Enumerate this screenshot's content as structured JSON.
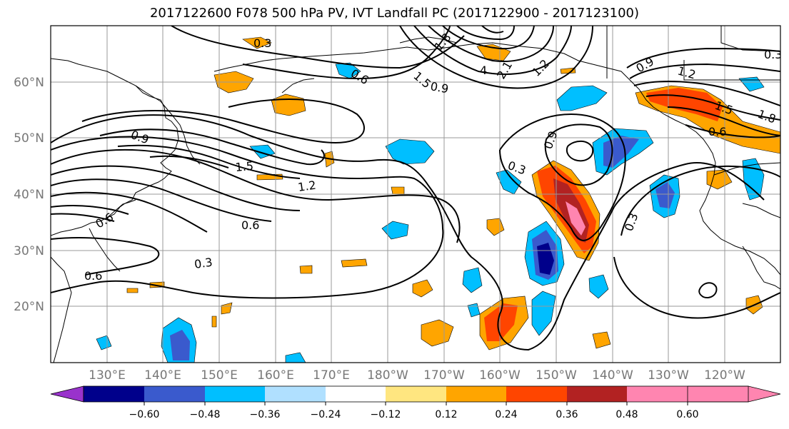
{
  "title": "2017122600 F078 500 hPa PV, IVT Landfall PC (2017122900 - 2017123100)",
  "lat_labels": [
    "60°N",
    "50°N",
    "40°N",
    "30°N",
    "20°N"
  ],
  "lon_labels": [
    "130°E",
    "140°E",
    "150°E",
    "160°E",
    "170°E",
    "180°W",
    "170°W",
    "160°W",
    "150°W",
    "140°W",
    "130°W",
    "120°W"
  ],
  "contour_labels": [
    "0.3",
    "0.6",
    "0.9",
    "1.2",
    "1.5",
    "1.8",
    "2.1",
    "0.9",
    "1.5",
    "1.2",
    "0.6",
    "0.3",
    "0.9",
    "1.2",
    "1.5",
    "1.8",
    "0.6",
    "0.9",
    "0.3",
    "0.3",
    "0.6",
    "0.6",
    "0.3",
    "4"
  ],
  "colorbar": {
    "ticks": [
      "−0.60",
      "−0.48",
      "−0.36",
      "−0.24",
      "−0.12",
      "0.12",
      "0.24",
      "0.36",
      "0.48",
      "0.60"
    ],
    "colors": [
      "#9932cc",
      "#00008b",
      "#3a5acd",
      "#00bfff",
      "#b0e0ff",
      "#ffffff",
      "#ffe680",
      "#ffa500",
      "#ff4500",
      "#b22222",
      "#ff85b0"
    ]
  }
}
